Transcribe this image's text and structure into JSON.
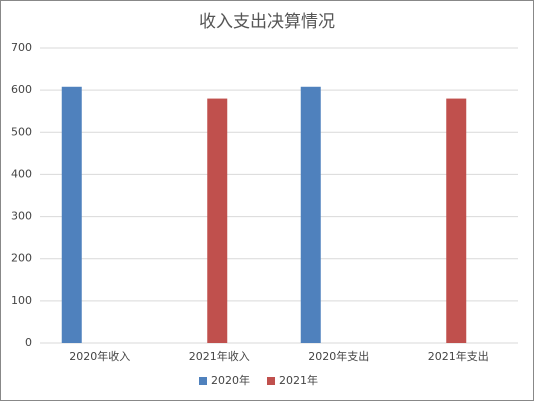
{
  "chart_data": {
    "type": "bar",
    "title": "收入支出决算情况",
    "categories": [
      "2020年收入",
      "2021年收入",
      "2020年支出",
      "2021年支出"
    ],
    "series": [
      {
        "name": "2020年",
        "color": "#4f81bd",
        "values": [
          608,
          null,
          608,
          null
        ]
      },
      {
        "name": "2021年",
        "color": "#c0504d",
        "values": [
          null,
          580,
          null,
          580
        ]
      }
    ],
    "ylim": [
      0,
      700
    ],
    "yticks": [
      0,
      100,
      200,
      300,
      400,
      500,
      600,
      700
    ],
    "grid": true,
    "legend": "bottom"
  }
}
